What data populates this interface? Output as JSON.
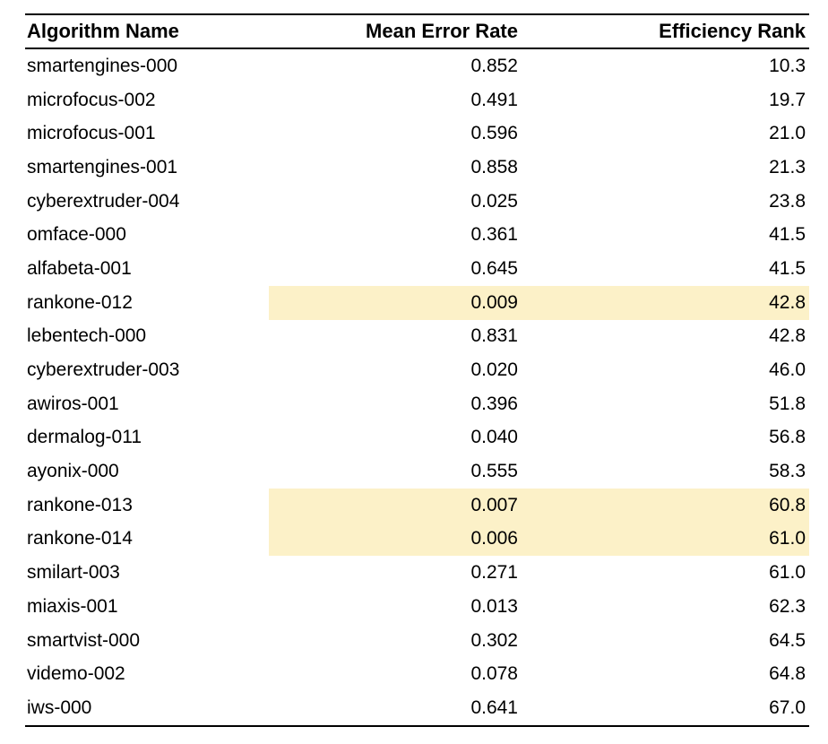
{
  "chart_data": {
    "type": "table",
    "title": "",
    "columns": [
      {
        "label": "Algorithm Name",
        "align": "left"
      },
      {
        "label": "Mean Error Rate",
        "align": "right"
      },
      {
        "label": "Efficiency Rank",
        "align": "right"
      }
    ],
    "highlight_color": "#fcf1c8",
    "highlight_note": "Mean Error Rate and Efficiency Rank cells highlighted pale yellow for rankone-012, rankone-013, rankone-014",
    "rows": [
      {
        "name": "smartengines-000",
        "error": "0.852",
        "rank": "10.3",
        "highlighted": false
      },
      {
        "name": "microfocus-002",
        "error": "0.491",
        "rank": "19.7",
        "highlighted": false
      },
      {
        "name": "microfocus-001",
        "error": "0.596",
        "rank": "21.0",
        "highlighted": false
      },
      {
        "name": "smartengines-001",
        "error": "0.858",
        "rank": "21.3",
        "highlighted": false
      },
      {
        "name": "cyberextruder-004",
        "error": "0.025",
        "rank": "23.8",
        "highlighted": false
      },
      {
        "name": "omface-000",
        "error": "0.361",
        "rank": "41.5",
        "highlighted": false
      },
      {
        "name": "alfabeta-001",
        "error": "0.645",
        "rank": "41.5",
        "highlighted": false
      },
      {
        "name": "rankone-012",
        "error": "0.009",
        "rank": "42.8",
        "highlighted": true
      },
      {
        "name": "lebentech-000",
        "error": "0.831",
        "rank": "42.8",
        "highlighted": false
      },
      {
        "name": "cyberextruder-003",
        "error": "0.020",
        "rank": "46.0",
        "highlighted": false
      },
      {
        "name": "awiros-001",
        "error": "0.396",
        "rank": "51.8",
        "highlighted": false
      },
      {
        "name": "dermalog-011",
        "error": "0.040",
        "rank": "56.8",
        "highlighted": false
      },
      {
        "name": "ayonix-000",
        "error": "0.555",
        "rank": "58.3",
        "highlighted": false
      },
      {
        "name": "rankone-013",
        "error": "0.007",
        "rank": "60.8",
        "highlighted": true
      },
      {
        "name": "rankone-014",
        "error": "0.006",
        "rank": "61.0",
        "highlighted": true
      },
      {
        "name": "smilart-003",
        "error": "0.271",
        "rank": "61.0",
        "highlighted": false
      },
      {
        "name": "miaxis-001",
        "error": "0.013",
        "rank": "62.3",
        "highlighted": false
      },
      {
        "name": "smartvist-000",
        "error": "0.302",
        "rank": "64.5",
        "highlighted": false
      },
      {
        "name": "videmo-002",
        "error": "0.078",
        "rank": "64.8",
        "highlighted": false
      },
      {
        "name": "iws-000",
        "error": "0.641",
        "rank": "67.0",
        "highlighted": false
      }
    ]
  }
}
